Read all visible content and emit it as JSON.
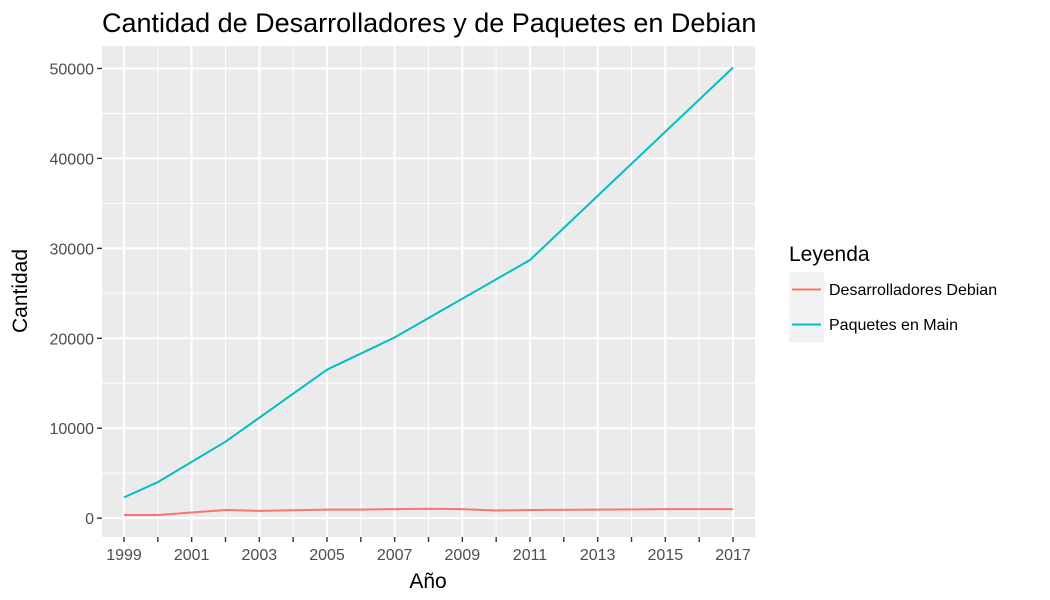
{
  "chart_data": {
    "type": "line",
    "title": "Cantidad de Desarrolladores y de Paquetes en Debian",
    "xlabel": "Año",
    "ylabel": "Cantidad",
    "xlim": [
      1998.35,
      2017.65
    ],
    "ylim": [
      -2100,
      52500
    ],
    "x_ticks": [
      1999,
      2001,
      2003,
      2005,
      2007,
      2009,
      2011,
      2013,
      2015,
      2017
    ],
    "x_tick_labels": [
      "1999",
      "2001",
      "2003",
      "2005",
      "2007",
      "2009",
      "2011",
      "2013",
      "2015",
      "2017"
    ],
    "y_ticks": [
      0,
      10000,
      20000,
      30000,
      40000,
      50000
    ],
    "y_tick_labels": [
      "0",
      "10000",
      "20000",
      "30000",
      "40000",
      "50000"
    ],
    "grid": true,
    "legend": {
      "title": "Leyenda",
      "position": "right"
    },
    "series": [
      {
        "name": "Desarrolladores Debian",
        "color": "#F8766D",
        "x": [
          1999,
          2000,
          2002,
          2003,
          2005,
          2006,
          2007,
          2008,
          2009,
          2010,
          2011,
          2013,
          2015,
          2017
        ],
        "y": [
          350,
          350,
          900,
          800,
          950,
          950,
          1000,
          1050,
          1000,
          850,
          900,
          950,
          1000,
          1000
        ]
      },
      {
        "name": "Paquetes en Main",
        "color": "#00BFC4",
        "x": [
          1999,
          2000,
          2002,
          2005,
          2007,
          2011,
          2017
        ],
        "y": [
          2300,
          4000,
          8500,
          16500,
          20100,
          28700,
          50100
        ]
      }
    ]
  }
}
